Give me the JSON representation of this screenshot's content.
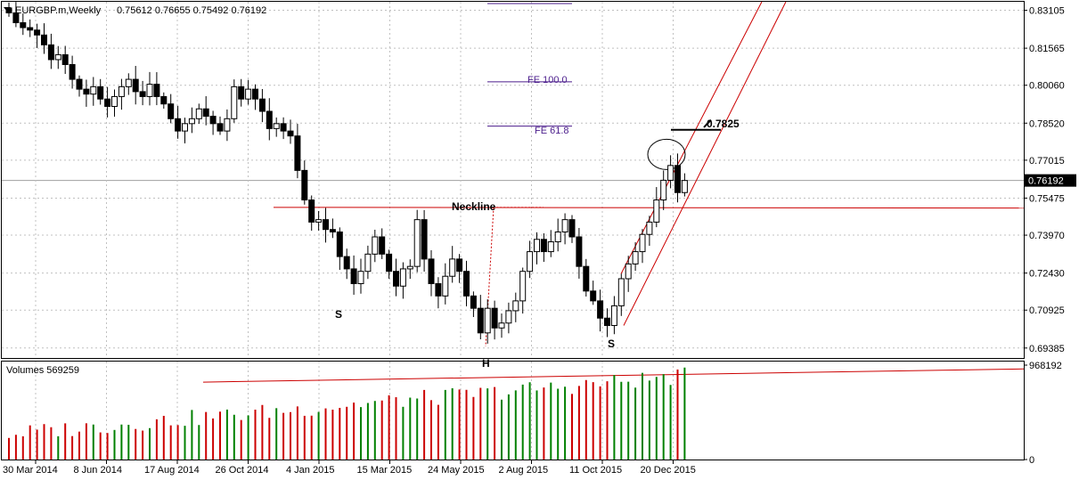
{
  "header": {
    "symbol": "EURGBP.m,Weekly",
    "ohlc": "0.75612 0.76655 0.75492 0.76192"
  },
  "volume_header": "Volumes 569259",
  "colors": {
    "bull": "#008000",
    "bear": "#cc0000",
    "trend": "#cc0000",
    "fib": "#4b1d8c",
    "grid": "#c0c0c0"
  },
  "chart_data": [
    {
      "type": "candlestick",
      "yticks": [
        "0.83105",
        "0.81565",
        "0.80060",
        "0.78520",
        "0.77015",
        "0.75475",
        "0.73970",
        "0.72430",
        "0.70925",
        "0.69385"
      ],
      "ylim": [
        0.6898,
        0.8345
      ],
      "current_price": "0.76192",
      "xticks": [
        "30 Mar 2014",
        "8 Jun 2014",
        "17 Aug 2014",
        "26 Oct 2014",
        "4 Jan 2015",
        "15 Mar 2015",
        "24 May 2015",
        "2 Aug 2015",
        "11 Oct 2015",
        "20 Dec 2015"
      ],
      "closes": [
        0.83,
        0.826,
        0.824,
        0.823,
        0.821,
        0.817,
        0.811,
        0.813,
        0.809,
        0.803,
        0.799,
        0.797,
        0.8,
        0.795,
        0.792,
        0.796,
        0.8,
        0.803,
        0.798,
        0.796,
        0.801,
        0.796,
        0.793,
        0.787,
        0.782,
        0.785,
        0.787,
        0.791,
        0.788,
        0.785,
        0.782,
        0.787,
        0.8,
        0.795,
        0.799,
        0.795,
        0.79,
        0.783,
        0.785,
        0.782,
        0.78,
        0.766,
        0.754,
        0.745,
        0.746,
        0.742,
        0.741,
        0.731,
        0.726,
        0.72,
        0.725,
        0.732,
        0.739,
        0.732,
        0.725,
        0.719,
        0.726,
        0.727,
        0.746,
        0.73,
        0.72,
        0.715,
        0.723,
        0.73,
        0.725,
        0.715,
        0.71,
        0.7,
        0.71,
        0.702,
        0.704,
        0.709,
        0.713,
        0.725,
        0.733,
        0.738,
        0.733,
        0.737,
        0.741,
        0.746,
        0.739,
        0.727,
        0.717,
        0.713,
        0.706,
        0.703,
        0.711,
        0.722,
        0.728,
        0.733,
        0.74,
        0.745,
        0.754,
        0.762,
        0.768,
        0.757,
        0.7619
      ],
      "annotations": [
        {
          "text": "Neckline",
          "value": 0.751
        },
        {
          "text": "0.7825",
          "value": 0.7825
        },
        {
          "text": "FE 100.0",
          "value": 0.802
        },
        {
          "text": "FE 61.8",
          "value": 0.784
        }
      ],
      "pattern_labels": [
        "S",
        "H",
        "S"
      ]
    },
    {
      "type": "bar",
      "series_name": "Volumes",
      "current": "569259",
      "yticks": [
        "968192",
        "0"
      ],
      "ylim": [
        0,
        968192
      ]
    }
  ]
}
